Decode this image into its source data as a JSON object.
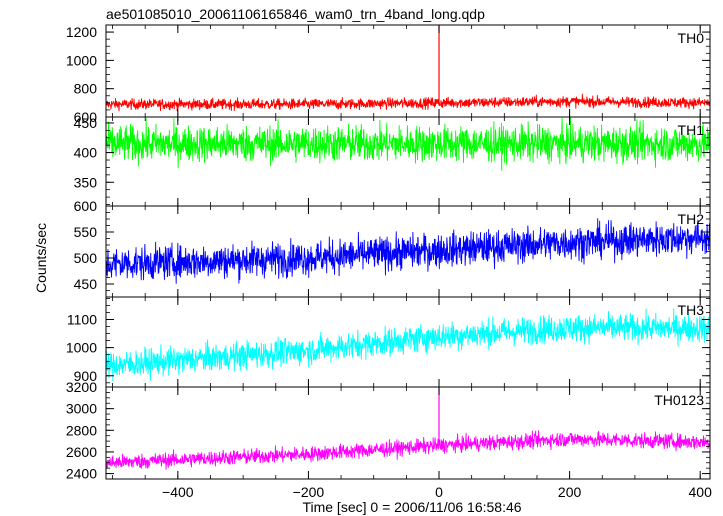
{
  "chart_data": {
    "type": "line",
    "title": "ae501085010_20061106165846_wam0_trn_4band_long.qdp",
    "xlabel": "Time [sec] 0 = 2006/11/06 16:58:46",
    "ylabel": "Counts/sec",
    "xlim": [
      -510,
      415
    ],
    "x_ticks": [
      -400,
      -200,
      0,
      200,
      400
    ],
    "grid": false,
    "panels": [
      {
        "name": "TH0",
        "color": "#ff0000",
        "ylim": [
          600,
          1250
        ],
        "y_ticks": [
          600,
          800,
          1000,
          1200
        ],
        "baseline": [
          [
            -510,
            690
          ],
          [
            -200,
            690
          ],
          [
            0,
            700
          ],
          [
            200,
            710
          ],
          [
            415,
            700
          ]
        ],
        "noise": 35,
        "spikes": [
          [
            0,
            1250
          ]
        ]
      },
      {
        "name": "TH1",
        "color": "#00ff00",
        "ylim": [
          310,
          460
        ],
        "y_ticks": [
          350,
          400,
          450
        ],
        "baseline": [
          [
            -510,
            415
          ],
          [
            0,
            415
          ],
          [
            415,
            415
          ]
        ],
        "noise": 28,
        "spikes": []
      },
      {
        "name": "TH2",
        "color": "#0000ff",
        "ylim": [
          425,
          600
        ],
        "y_ticks": [
          450,
          500,
          550,
          600
        ],
        "baseline": [
          [
            -510,
            488
          ],
          [
            -200,
            500
          ],
          [
            0,
            515
          ],
          [
            200,
            530
          ],
          [
            415,
            540
          ]
        ],
        "noise": 30,
        "spikes": []
      },
      {
        "name": "TH3",
        "color": "#00ffff",
        "ylim": [
          860,
          1180
        ],
        "y_ticks": [
          900,
          1000,
          1100
        ],
        "baseline": [
          [
            -510,
            935
          ],
          [
            -200,
            990
          ],
          [
            0,
            1040
          ],
          [
            200,
            1070
          ],
          [
            415,
            1070
          ]
        ],
        "noise": 45,
        "spikes": []
      },
      {
        "name": "TH0123",
        "color": "#ff00ff",
        "ylim": [
          2350,
          3200
        ],
        "y_ticks": [
          2400,
          2600,
          2800,
          3000,
          3200
        ],
        "baseline": [
          [
            -510,
            2500
          ],
          [
            -200,
            2580
          ],
          [
            0,
            2660
          ],
          [
            200,
            2720
          ],
          [
            415,
            2690
          ]
        ],
        "noise": 65,
        "spikes": [
          [
            0,
            3230
          ]
        ]
      }
    ]
  }
}
